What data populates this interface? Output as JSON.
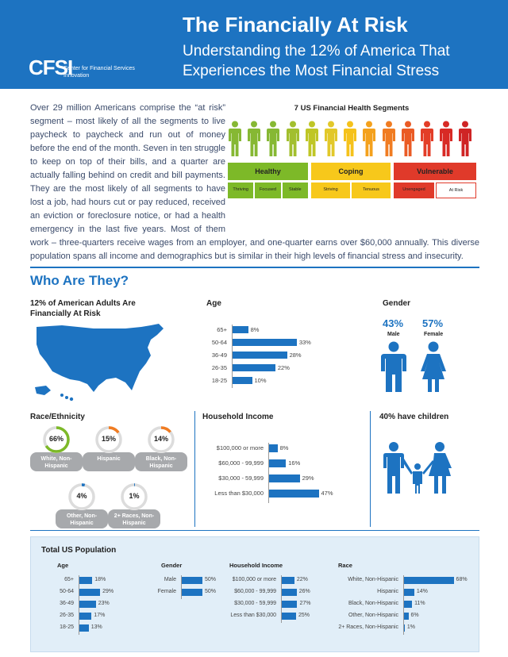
{
  "header": {
    "title": "The Financially At Risk",
    "subtitle": "Understanding the 12% of America That Experiences the Most Financial Stress",
    "logo": "CFSI",
    "logo_sub": "Center for Financial Services Innovation"
  },
  "intro": "Over 29 million Americans comprise the “at risk” segment – most likely of all the segments to live paycheck to paycheck and run out of money before the end of the month. Seven in ten struggle to keep on top of their bills, and a quarter are actually falling behind on credit and bill payments. They are the most likely of all segments to have lost a job, had hours cut or pay reduced, received an eviction or foreclosure notice, or had a health emergency in the last five years. Most of them work – three-quarters receive wages from an employer, and one-quarter earns over $60,000 annually. This diverse population spans all income and demographics but is similar in their high levels of financial stress and insecurity.",
  "segments": {
    "title": "7 US Financial Health Segments",
    "figure_colors": [
      "#86b833",
      "#86b833",
      "#86b833",
      "#a2bf2e",
      "#bfc626",
      "#e2c82a",
      "#f5c21b",
      "#f4a11d",
      "#f07c22",
      "#ea5b25",
      "#e33d27",
      "#d82a25",
      "#cf2425"
    ],
    "groups": [
      {
        "name": "Healthy",
        "color": "#7db928",
        "subs": [
          "Thriving",
          "Focused",
          "Stable"
        ]
      },
      {
        "name": "Coping",
        "color": "#f7c81b",
        "subs": [
          "Striving",
          "Tenuous"
        ]
      },
      {
        "name": "Vulnerable",
        "color": "#e03a2a",
        "subs": [
          "Unengaged",
          "At Risk"
        ]
      }
    ]
  },
  "who_title": "Who Are They?",
  "map_heading": "12% of American Adults Are Financially At Risk",
  "age_heading": "Age",
  "gender_heading": "Gender",
  "race_heading": "Race/Ethnicity",
  "income_heading": "Household Income",
  "children_heading": "40% have children",
  "gender": {
    "male": {
      "pct": "43%",
      "label": "Male"
    },
    "female": {
      "pct": "57%",
      "label": "Female"
    }
  },
  "race": [
    {
      "pct": "66%",
      "value": 66,
      "label": "White, Non-Hispanic",
      "color": "#7db928"
    },
    {
      "pct": "15%",
      "value": 15,
      "label": "Hispanic",
      "color": "#f07c22"
    },
    {
      "pct": "14%",
      "value": 14,
      "label": "Black, Non-Hispanic",
      "color": "#f07c22"
    },
    {
      "pct": "4%",
      "value": 4,
      "label": "Other, Non-Hispanic",
      "color": "#1d73c1"
    },
    {
      "pct": "1%",
      "value": 1,
      "label": "2+ Races, Non-Hispanic",
      "color": "#1d73c1"
    }
  ],
  "total_title": "Total US Population",
  "chart_data": [
    {
      "type": "bar",
      "title": "Age",
      "categories": [
        "65+",
        "50-64",
        "36-49",
        "26-35",
        "18-25"
      ],
      "values": [
        8,
        33,
        28,
        22,
        10
      ],
      "labels": [
        "8%",
        "33%",
        "28%",
        "22%",
        "10%"
      ]
    },
    {
      "type": "bar",
      "title": "Household Income",
      "categories": [
        "$100,000 or more",
        "$60,000 - 99,999",
        "$30,000 - 59,999",
        "Less than $30,000"
      ],
      "values": [
        8,
        16,
        29,
        47
      ],
      "labels": [
        "8%",
        "16%",
        "29%",
        "47%"
      ]
    },
    {
      "type": "bar",
      "title": "Age",
      "categories": [
        "65+",
        "50-64",
        "36-49",
        "26-35",
        "18-25"
      ],
      "values": [
        18,
        29,
        23,
        17,
        13
      ],
      "labels": [
        "18%",
        "29%",
        "23%",
        "17%",
        "13%"
      ]
    },
    {
      "type": "bar",
      "title": "Gender",
      "categories": [
        "Male",
        "Female"
      ],
      "values": [
        50,
        50
      ],
      "labels": [
        "50%",
        "50%"
      ]
    },
    {
      "type": "bar",
      "title": "Household Income",
      "categories": [
        "$100,000 or more",
        "$60,000 - 99,999",
        "$30,000 - 59,999",
        "Less than $30,000"
      ],
      "values": [
        22,
        26,
        27,
        25
      ],
      "labels": [
        "22%",
        "26%",
        "27%",
        "25%"
      ]
    },
    {
      "type": "bar",
      "title": "Race",
      "categories": [
        "White, Non-Hispanic",
        "Hispanic",
        "Black, Non-Hispanic",
        "Other, Non-Hispanic",
        "2+ Races, Non-Hispanic"
      ],
      "values": [
        68,
        14,
        11,
        6,
        1
      ],
      "labels": [
        "68%",
        "14%",
        "11%",
        "6%",
        "1%"
      ]
    }
  ]
}
